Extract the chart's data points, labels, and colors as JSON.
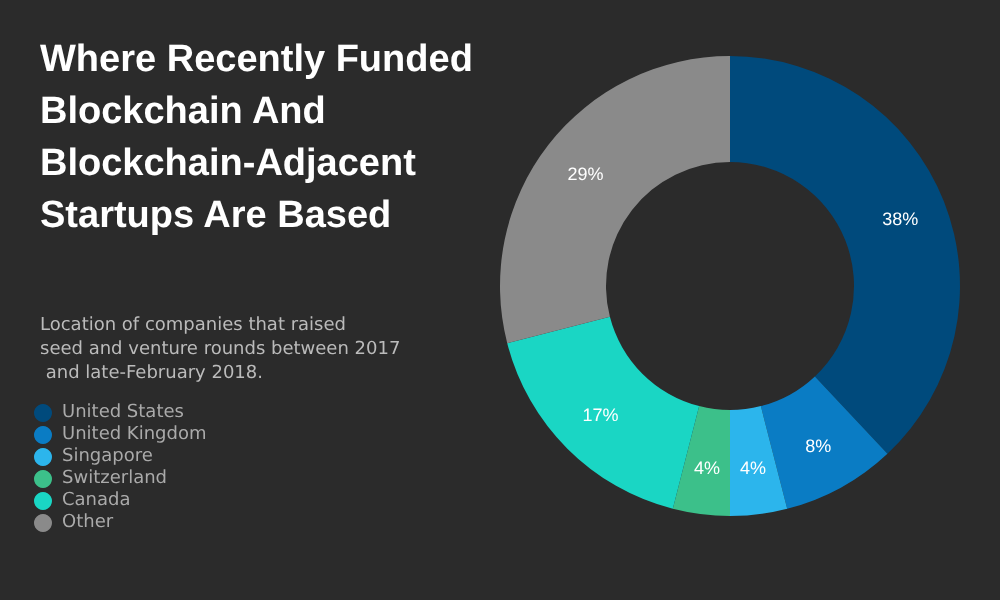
{
  "chart_data": {
    "type": "donut",
    "title": "Where Recently Funded Blockchain And Blockchain-Adjacent Startups Are Based",
    "subtitle": "Location of companies that raised seed and venture rounds between 2017 and late-February 2018.",
    "categories": [
      "United States",
      "United Kingdom",
      "Singapore",
      "Switzerland",
      "Canada",
      "Other"
    ],
    "values": [
      38,
      8,
      4,
      4,
      17,
      29
    ],
    "colors": [
      "#004a7c",
      "#0a7cc4",
      "#2cb5ec",
      "#3cc08a",
      "#1ad6c4",
      "#8a8a8a"
    ],
    "value_labels": [
      "38%",
      "8%",
      "4%",
      "4%",
      "17%",
      "29%"
    ],
    "legend": "left"
  }
}
